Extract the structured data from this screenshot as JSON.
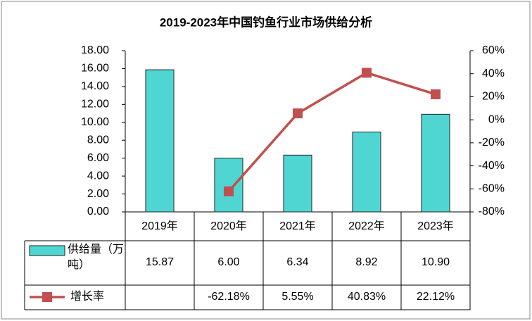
{
  "chart_data": {
    "type": "bar",
    "title": "2019-2023年中国钓鱼行业市场供给分析",
    "categories": [
      "2019年",
      "2020年",
      "2021年",
      "2022年",
      "2023年"
    ],
    "series": [
      {
        "name": "供给量（万吨）",
        "type": "bar",
        "color": "#4fd6d2",
        "values": [
          15.87,
          6.0,
          6.34,
          8.92,
          10.9
        ],
        "value_labels": [
          "15.87",
          "6.00",
          "6.34",
          "8.92",
          "10.90"
        ]
      },
      {
        "name": "增长率",
        "type": "line",
        "axis": "y2",
        "color": "#c0504d",
        "values": [
          null,
          -62.18,
          5.55,
          40.83,
          22.12
        ],
        "value_labels": [
          null,
          "-62.18%",
          "5.55%",
          "40.83%",
          "22.12%"
        ]
      }
    ],
    "ylim": [
      0,
      18
    ],
    "yticks": [
      {
        "value": 0,
        "label": "0.00"
      },
      {
        "value": 2,
        "label": "2.00"
      },
      {
        "value": 4,
        "label": "4.00"
      },
      {
        "value": 6,
        "label": "6.00"
      },
      {
        "value": 8,
        "label": "8.00"
      },
      {
        "value": 10,
        "label": "10.00"
      },
      {
        "value": 12,
        "label": "12.00"
      },
      {
        "value": 14,
        "label": "14.00"
      },
      {
        "value": 16,
        "label": "16.00"
      },
      {
        "value": 18,
        "label": "18.00"
      }
    ],
    "y2lim": [
      -80,
      60
    ],
    "y2ticks": [
      {
        "value": -80,
        "label": "-80%"
      },
      {
        "value": -60,
        "label": "-60%"
      },
      {
        "value": -40,
        "label": "-40%"
      },
      {
        "value": -20,
        "label": "-20%"
      },
      {
        "value": 0,
        "label": "0%"
      },
      {
        "value": 20,
        "label": "20%"
      },
      {
        "value": 40,
        "label": "40%"
      },
      {
        "value": 60,
        "label": "60%"
      }
    ],
    "grid": false
  }
}
